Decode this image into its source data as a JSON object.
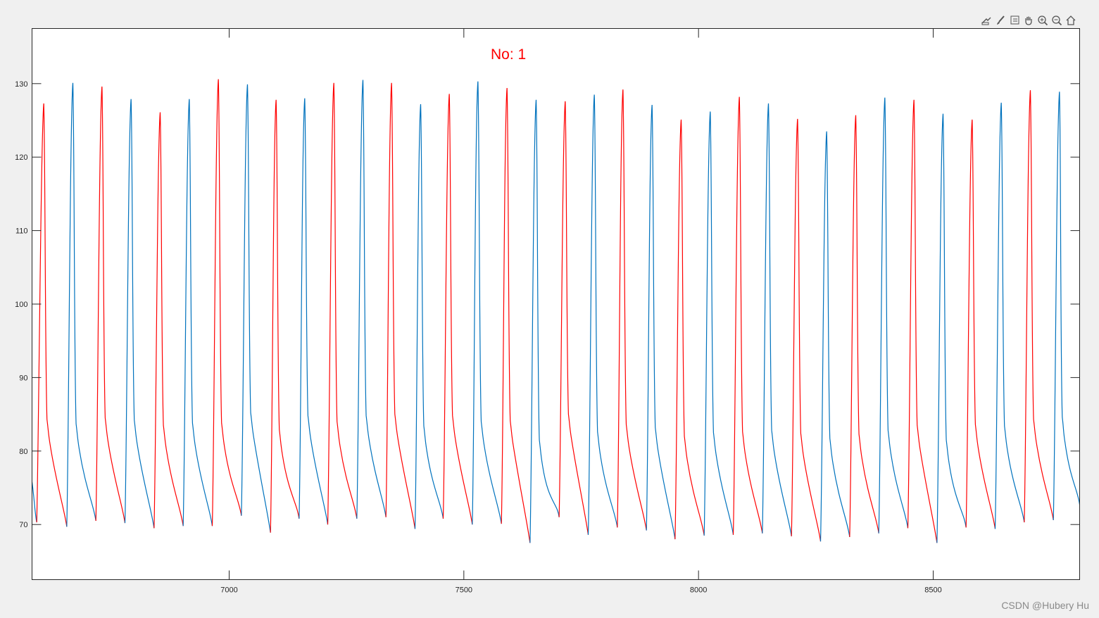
{
  "toolbar": {
    "buttons": [
      {
        "name": "export-icon",
        "label": "Export"
      },
      {
        "name": "brush-icon",
        "label": "Brush"
      },
      {
        "name": "datatip-icon",
        "label": "Data Tips"
      },
      {
        "name": "pan-icon",
        "label": "Pan"
      },
      {
        "name": "zoom-in-icon",
        "label": "Zoom In"
      },
      {
        "name": "zoom-out-icon",
        "label": "Zoom Out"
      },
      {
        "name": "home-icon",
        "label": "Restore View"
      }
    ]
  },
  "watermark": "CSDN @Hubery Hu",
  "chart_data": {
    "type": "line",
    "title": "No:  1",
    "title_color": "#ff0000",
    "xlabel": "",
    "ylabel": "",
    "xlim": [
      6580,
      8812
    ],
    "ylim": [
      62.5,
      137.5
    ],
    "xticks": [
      7000,
      7500,
      8000,
      8500
    ],
    "yticks": [
      70,
      80,
      90,
      100,
      110,
      120,
      130
    ],
    "grid": false,
    "segment_colors": [
      "#ff0000",
      "#0072bd"
    ],
    "cycles": [
      {
        "trough_x": 6590,
        "trough_y": 70.3,
        "peak_x": 6605,
        "peak_y": 127.3,
        "color": "#ff0000"
      },
      {
        "trough_x": 6654,
        "trough_y": 69.7,
        "peak_x": 6667,
        "peak_y": 130.1,
        "color": "#0072bd"
      },
      {
        "trough_x": 6716,
        "trough_y": 70.5,
        "peak_x": 6729,
        "peak_y": 129.6,
        "color": "#ff0000"
      },
      {
        "trough_x": 6778,
        "trough_y": 70.2,
        "peak_x": 6791,
        "peak_y": 127.9,
        "color": "#0072bd"
      },
      {
        "trough_x": 6840,
        "trough_y": 69.5,
        "peak_x": 6853,
        "peak_y": 126.1,
        "color": "#ff0000"
      },
      {
        "trough_x": 6902,
        "trough_y": 69.8,
        "peak_x": 6915,
        "peak_y": 127.9,
        "color": "#0072bd"
      },
      {
        "trough_x": 6964,
        "trough_y": 69.8,
        "peak_x": 6977,
        "peak_y": 130.6,
        "color": "#ff0000"
      },
      {
        "trough_x": 7026,
        "trough_y": 71.2,
        "peak_x": 7039,
        "peak_y": 129.9,
        "color": "#0072bd"
      },
      {
        "trough_x": 7088,
        "trough_y": 68.9,
        "peak_x": 7100,
        "peak_y": 127.8,
        "color": "#ff0000"
      },
      {
        "trough_x": 7149,
        "trough_y": 70.8,
        "peak_x": 7161,
        "peak_y": 128.0,
        "color": "#0072bd"
      },
      {
        "trough_x": 7210,
        "trough_y": 70.0,
        "peak_x": 7223,
        "peak_y": 130.1,
        "color": "#ff0000"
      },
      {
        "trough_x": 7272,
        "trough_y": 70.8,
        "peak_x": 7285,
        "peak_y": 130.5,
        "color": "#0072bd"
      },
      {
        "trough_x": 7334,
        "trough_y": 71.0,
        "peak_x": 7346,
        "peak_y": 130.1,
        "color": "#ff0000"
      },
      {
        "trough_x": 7396,
        "trough_y": 69.4,
        "peak_x": 7408,
        "peak_y": 127.2,
        "color": "#0072bd"
      },
      {
        "trough_x": 7456,
        "trough_y": 70.8,
        "peak_x": 7469,
        "peak_y": 128.6,
        "color": "#ff0000"
      },
      {
        "trough_x": 7518,
        "trough_y": 70.0,
        "peak_x": 7530,
        "peak_y": 130.3,
        "color": "#0072bd"
      },
      {
        "trough_x": 7580,
        "trough_y": 70.1,
        "peak_x": 7592,
        "peak_y": 129.4,
        "color": "#ff0000"
      },
      {
        "trough_x": 7641,
        "trough_y": 67.5,
        "peak_x": 7654,
        "peak_y": 127.8,
        "color": "#0072bd"
      },
      {
        "trough_x": 7703,
        "trough_y": 71.0,
        "peak_x": 7716,
        "peak_y": 127.6,
        "color": "#ff0000"
      },
      {
        "trough_x": 7765,
        "trough_y": 68.6,
        "peak_x": 7778,
        "peak_y": 128.5,
        "color": "#0072bd"
      },
      {
        "trough_x": 7827,
        "trough_y": 69.6,
        "peak_x": 7839,
        "peak_y": 129.2,
        "color": "#ff0000"
      },
      {
        "trough_x": 7889,
        "trough_y": 69.2,
        "peak_x": 7901,
        "peak_y": 127.1,
        "color": "#0072bd"
      },
      {
        "trough_x": 7950,
        "trough_y": 68.0,
        "peak_x": 7963,
        "peak_y": 125.1,
        "color": "#ff0000"
      },
      {
        "trough_x": 8012,
        "trough_y": 68.5,
        "peak_x": 8025,
        "peak_y": 126.2,
        "color": "#0072bd"
      },
      {
        "trough_x": 8074,
        "trough_y": 68.6,
        "peak_x": 8087,
        "peak_y": 128.2,
        "color": "#ff0000"
      },
      {
        "trough_x": 8136,
        "trough_y": 68.8,
        "peak_x": 8149,
        "peak_y": 127.3,
        "color": "#0072bd"
      },
      {
        "trough_x": 8198,
        "trough_y": 68.4,
        "peak_x": 8211,
        "peak_y": 125.2,
        "color": "#ff0000"
      },
      {
        "trough_x": 8260,
        "trough_y": 67.7,
        "peak_x": 8273,
        "peak_y": 123.5,
        "color": "#0072bd"
      },
      {
        "trough_x": 8322,
        "trough_y": 68.3,
        "peak_x": 8335,
        "peak_y": 125.7,
        "color": "#ff0000"
      },
      {
        "trough_x": 8384,
        "trough_y": 68.8,
        "peak_x": 8397,
        "peak_y": 128.1,
        "color": "#0072bd"
      },
      {
        "trough_x": 8446,
        "trough_y": 69.5,
        "peak_x": 8459,
        "peak_y": 127.8,
        "color": "#ff0000"
      },
      {
        "trough_x": 8508,
        "trough_y": 67.5,
        "peak_x": 8521,
        "peak_y": 125.9,
        "color": "#0072bd"
      },
      {
        "trough_x": 8570,
        "trough_y": 69.6,
        "peak_x": 8583,
        "peak_y": 125.1,
        "color": "#ff0000"
      },
      {
        "trough_x": 8632,
        "trough_y": 69.4,
        "peak_x": 8645,
        "peak_y": 127.4,
        "color": "#0072bd"
      },
      {
        "trough_x": 8694,
        "trough_y": 70.3,
        "peak_x": 8707,
        "peak_y": 129.1,
        "color": "#ff0000"
      },
      {
        "trough_x": 8756,
        "trough_y": 70.6,
        "peak_x": 8769,
        "peak_y": 128.9,
        "color": "#0072bd"
      }
    ],
    "end_point": {
      "x": 8812,
      "y": 72.7
    }
  }
}
